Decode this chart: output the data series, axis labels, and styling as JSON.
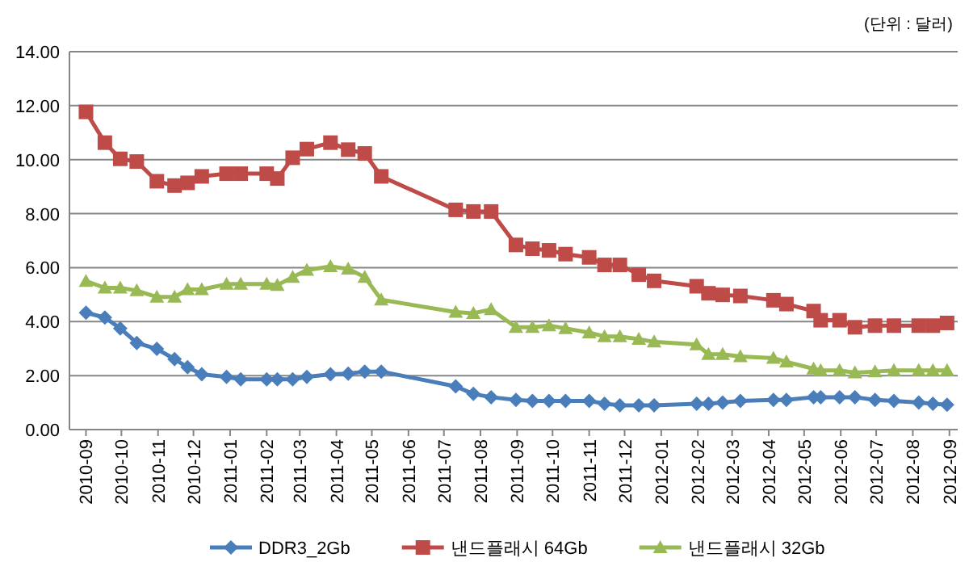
{
  "chart_data": {
    "type": "line",
    "annotations": [
      "(단위 : 달러)"
    ],
    "x": [
      "2010-09-01",
      "2010-09-17",
      "2010-09-30",
      "2010-10-14",
      "2010-10-31",
      "2010-11-15",
      "2010-11-26",
      "2010-12-08",
      "2010-12-29",
      "2011-01-10",
      "2011-02-01",
      "2011-02-10",
      "2011-02-23",
      "2011-03-07",
      "2011-03-27",
      "2011-04-11",
      "2011-04-25",
      "2011-05-09",
      "2011-07-11",
      "2011-07-26",
      "2011-08-10",
      "2011-08-31",
      "2011-09-14",
      "2011-09-28",
      "2011-10-12",
      "2011-11-01",
      "2011-11-14",
      "2011-11-27",
      "2011-12-13",
      "2011-12-26",
      "2012-01-31",
      "2012-02-10",
      "2012-02-22",
      "2012-03-08",
      "2012-04-05",
      "2012-04-16",
      "2012-05-09",
      "2012-05-15",
      "2012-05-31",
      "2012-06-13",
      "2012-06-30",
      "2012-07-16",
      "2012-08-06",
      "2012-08-18",
      "2012-08-30"
    ],
    "series": [
      {
        "name": "DDR3_2Gb",
        "color": "#4a7ebb",
        "marker": "diamond",
        "values": [
          4.33,
          4.15,
          3.75,
          3.21,
          2.99,
          2.61,
          2.31,
          2.05,
          1.95,
          1.86,
          1.86,
          1.86,
          1.86,
          1.95,
          2.05,
          2.07,
          2.15,
          2.15,
          1.6,
          1.32,
          1.2,
          1.1,
          1.06,
          1.06,
          1.06,
          1.06,
          0.96,
          0.9,
          0.9,
          0.9,
          0.96,
          0.96,
          1.0,
          1.06,
          1.1,
          1.1,
          1.2,
          1.2,
          1.2,
          1.2,
          1.1,
          1.06,
          1.0,
          0.96,
          0.92
        ]
      },
      {
        "name": "낸드플래시 64Gb",
        "color": "#be4b48",
        "marker": "square",
        "values": [
          11.77,
          10.63,
          10.03,
          9.93,
          9.2,
          9.04,
          9.14,
          9.38,
          9.48,
          9.48,
          9.48,
          9.3,
          10.07,
          10.39,
          10.63,
          10.37,
          10.23,
          9.38,
          8.14,
          8.08,
          8.08,
          6.84,
          6.7,
          6.64,
          6.5,
          6.38,
          6.1,
          6.1,
          5.74,
          5.51,
          5.31,
          5.05,
          4.99,
          4.95,
          4.79,
          4.65,
          4.39,
          4.05,
          4.05,
          3.79,
          3.85,
          3.85,
          3.85,
          3.85,
          3.95
        ]
      },
      {
        "name": "낸드플래시 32Gb",
        "color": "#98b954",
        "marker": "triangle",
        "values": [
          5.5,
          5.25,
          5.25,
          5.15,
          4.91,
          4.91,
          5.19,
          5.19,
          5.39,
          5.39,
          5.39,
          5.35,
          5.65,
          5.91,
          6.04,
          5.95,
          5.65,
          4.81,
          4.35,
          4.31,
          4.45,
          3.79,
          3.79,
          3.85,
          3.75,
          3.59,
          3.45,
          3.45,
          3.35,
          3.25,
          3.15,
          2.79,
          2.79,
          2.71,
          2.65,
          2.51,
          2.25,
          2.19,
          2.19,
          2.11,
          2.15,
          2.19,
          2.19,
          2.19,
          2.19
        ]
      }
    ],
    "xlim": [
      "2010-08-18",
      "2012-09-08"
    ],
    "xticks": [
      "2010-09",
      "2010-10",
      "2010-11",
      "2010-12",
      "2011-01",
      "2011-02",
      "2011-03",
      "2011-04",
      "2011-05",
      "2011-06",
      "2011-07",
      "2011-08",
      "2011-09",
      "2011-10",
      "2011-11",
      "2011-12",
      "2012-01",
      "2012-02",
      "2012-03",
      "2012-04",
      "2012-05",
      "2012-06",
      "2012-07",
      "2012-08",
      "2012-09"
    ],
    "ylim": [
      0,
      14
    ],
    "yticks": [
      {
        "value": 0,
        "label": "0.00"
      },
      {
        "value": 2,
        "label": "2.00"
      },
      {
        "value": 4,
        "label": "4.00"
      },
      {
        "value": 6,
        "label": "6.00"
      },
      {
        "value": 8,
        "label": "8.00"
      },
      {
        "value": 10,
        "label": "10.00"
      },
      {
        "value": 12,
        "label": "12.00"
      },
      {
        "value": 14,
        "label": "14.00"
      }
    ],
    "grid": "y",
    "legend": "bottom",
    "line_style": "solid"
  }
}
